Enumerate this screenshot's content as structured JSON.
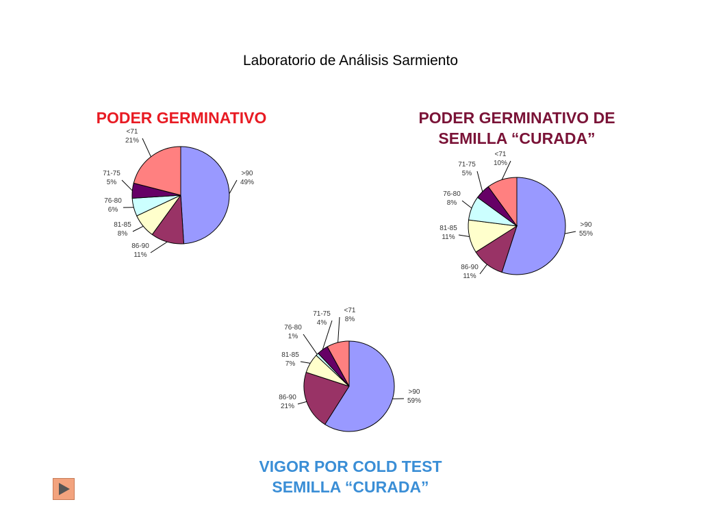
{
  "title": "Laboratorio de Análisis Sarmiento",
  "chart_titles": [
    "PODER GERMINATIVO",
    "PODER GERMINATIVO DE",
    "SEMILLA “CURADA”",
    "VIGOR POR COLD TEST",
    "SEMILLA “CURADA”"
  ],
  "colors": {
    ">90": "#9999ff",
    "86-90": "#993366",
    "81-85": "#ffffcc",
    "76-80": "#ccffff",
    "71-75": "#660066",
    "<71": "#ff8080"
  },
  "chart_data": [
    {
      "type": "pie",
      "title": "PODER GERMINATIVO",
      "categories": [
        ">90",
        "86-90",
        "81-85",
        "76-80",
        "71-75",
        "<71"
      ],
      "values": [
        49,
        11,
        8,
        6,
        5,
        21
      ],
      "value_labels": [
        "49%",
        "11%",
        "8%",
        "6%",
        "5%",
        "21%"
      ]
    },
    {
      "type": "pie",
      "title": "PODER GERMINATIVO DE SEMILLA “CURADA”",
      "categories": [
        ">90",
        "86-90",
        "81-85",
        "76-80",
        "71-75",
        "<71"
      ],
      "values": [
        55,
        11,
        11,
        8,
        5,
        10
      ],
      "value_labels": [
        "55%",
        "11%",
        "11%",
        "8%",
        "5%",
        "10%"
      ]
    },
    {
      "type": "pie",
      "title": "VIGOR POR COLD TEST SEMILLA “CURADA”",
      "categories": [
        ">90",
        "86-90",
        "81-85",
        "76-80",
        "71-75",
        "<71"
      ],
      "values": [
        59,
        21,
        7,
        1,
        4,
        8
      ],
      "value_labels": [
        "59%",
        "21%",
        "7%",
        "1%",
        "4%",
        "8%"
      ]
    }
  ],
  "nav": {
    "next_icon": "play-arrow-icon"
  }
}
